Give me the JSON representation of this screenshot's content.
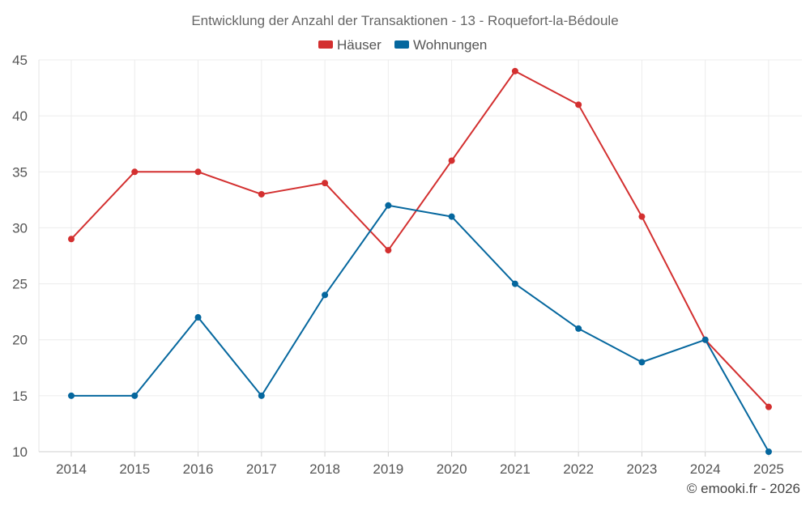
{
  "chart_data": {
    "type": "line",
    "title": "Entwicklung der Anzahl der Transaktionen - 13 - Roquefort-la-Bédoule",
    "categories": [
      "2014",
      "2015",
      "2016",
      "2017",
      "2018",
      "2019",
      "2020",
      "2021",
      "2022",
      "2023",
      "2024",
      "2025"
    ],
    "series": [
      {
        "name": "Häuser",
        "color": "#d32f2f",
        "values": [
          29,
          35,
          35,
          33,
          34,
          28,
          36,
          44,
          41,
          31,
          20,
          14
        ]
      },
      {
        "name": "Wohnungen",
        "color": "#05679e",
        "values": [
          15,
          15,
          22,
          15,
          24,
          32,
          31,
          25,
          21,
          18,
          20,
          10
        ]
      }
    ],
    "y_ticks": [
      10,
      15,
      20,
      25,
      30,
      35,
      40,
      45
    ],
    "ylim": [
      10,
      45
    ],
    "xlabel": "",
    "ylabel": "",
    "grid": true,
    "legend": "top-center"
  },
  "credit": "© emooki.fr - 2026"
}
